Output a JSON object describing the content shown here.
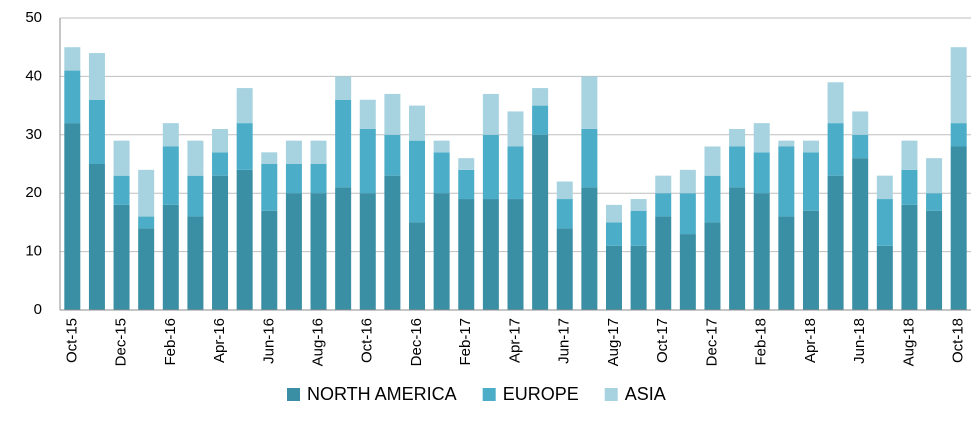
{
  "chart_data": {
    "type": "stacked_bar",
    "categories": [
      "Oct-15",
      null,
      "Dec-15",
      null,
      "Feb-16",
      null,
      "Apr-16",
      null,
      "Jun-16",
      null,
      "Aug-16",
      null,
      "Oct-16",
      null,
      "Dec-16",
      null,
      "Feb-17",
      null,
      "Apr-17",
      null,
      "Jun-17",
      null,
      "Aug-17",
      null,
      "Oct-17",
      null,
      "Dec-17",
      null,
      "Feb-18",
      null,
      "Apr-18",
      null,
      "Jun-18",
      null,
      "Aug-18",
      null,
      "Oct-18"
    ],
    "series": [
      {
        "name": "NORTH AMERICA",
        "color": "#3a8fa5",
        "values": [
          32,
          25,
          18,
          14,
          18,
          16,
          23,
          24,
          17,
          20,
          20,
          21,
          20,
          23,
          15,
          20,
          19,
          19,
          19,
          30,
          14,
          21,
          11,
          11,
          16,
          13,
          15,
          21,
          20,
          16,
          17,
          23,
          26,
          11,
          18,
          17,
          28
        ]
      },
      {
        "name": "EUROPE",
        "color": "#4badc7",
        "values": [
          9,
          11,
          5,
          2,
          10,
          7,
          4,
          8,
          8,
          5,
          5,
          15,
          11,
          7,
          14,
          7,
          5,
          11,
          9,
          5,
          5,
          10,
          4,
          6,
          4,
          7,
          8,
          7,
          7,
          12,
          10,
          9,
          4,
          8,
          6,
          3,
          4
        ]
      },
      {
        "name": "ASIA",
        "color": "#a7d3e0",
        "values": [
          4,
          8,
          6,
          8,
          4,
          6,
          4,
          6,
          2,
          4,
          4,
          4,
          5,
          7,
          6,
          2,
          2,
          7,
          6,
          3,
          3,
          9,
          3,
          2,
          3,
          4,
          5,
          3,
          5,
          1,
          2,
          7,
          4,
          4,
          5,
          6,
          13
        ]
      }
    ],
    "ylim": [
      0,
      50
    ],
    "yticks": [
      0,
      10,
      20,
      30,
      40,
      50
    ],
    "grid": true,
    "legend": "bottom"
  }
}
